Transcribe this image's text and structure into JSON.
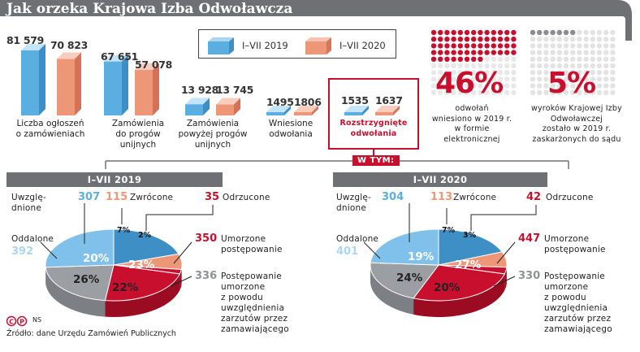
{
  "header": {
    "title": "Jak orzeka Krajowa Izba Odwoławcza"
  },
  "legend": {
    "series_2019": "I–VII 2019",
    "series_2020": "I–VII 2020"
  },
  "colors": {
    "blue": "#5aaee0",
    "salmon": "#ee9678",
    "red": "#c8102e",
    "grey": "#8f9296",
    "dark": "#6f7073",
    "lightblue": "#a9d6f2"
  },
  "bar_labels": [
    {
      "v2019": "81 579",
      "v2020": "70 823"
    },
    {
      "v2019": "67 651",
      "v2020": "57 078"
    },
    {
      "v2019": "13 928",
      "v2020": "13 745"
    },
    {
      "v2019": "1495",
      "v2020": "1806"
    },
    {
      "v2019": "1535",
      "v2020": "1637"
    }
  ],
  "categories": [
    {
      "line1": "Liczba ogłoszeń",
      "line2": "o zamówieniach",
      "line3": ""
    },
    {
      "line1": "Zamówienia",
      "line2": "do progów",
      "line3": "unijnych"
    },
    {
      "line1": "Zamówienia",
      "line2": "powyżej progów",
      "line3": "unijnych"
    },
    {
      "line1": "Wniesione",
      "line2": "odwołania",
      "line3": ""
    },
    {
      "line1": "Rozstrzygnięte",
      "line2": "odwołania",
      "line3": ""
    }
  ],
  "stats": [
    {
      "value": "46%",
      "line1": "odwołań",
      "line2": "wniesiono w 2019 r.",
      "line3": "w formie",
      "line4": "elektronicznej"
    },
    {
      "value": "5%",
      "line1": "wyroków Krajowej Izby",
      "line2": "Odwoławczej",
      "line3": "zostało w 2019 r.",
      "line4": "zaskarżonych do sądu"
    }
  ],
  "w_tym": "W TYM:",
  "pies": [
    {
      "period": "I–VII 2019",
      "items": {
        "uwzgl": {
          "count": "307",
          "label1": "Uwzglę-",
          "label2": "dnione",
          "pct": "20%"
        },
        "zwrocone": {
          "count": "115",
          "label": "Zwrócone",
          "pct": "7%"
        },
        "odrzucone": {
          "count": "35",
          "label": "Odrzucone",
          "pct": "2%"
        },
        "umorzone": {
          "count": "350",
          "label1": "Umorzone",
          "label2": "postępowanie",
          "pct": "23%"
        },
        "umorzone_brak": {
          "count": "336",
          "label1": "Postępowanie",
          "label2": "umorzone",
          "label3": "z powodu",
          "label4": "uwzględnienia",
          "label5": "zarzutów przez",
          "label6": "zamawiającego",
          "pct": "22%"
        },
        "oddalone": {
          "count": "392",
          "label": "Oddalone",
          "pct": "26%"
        }
      }
    },
    {
      "period": "I–VII 2020",
      "items": {
        "uwzgl": {
          "count": "304",
          "label1": "Uwzglę-",
          "label2": "dnione",
          "pct": "19%"
        },
        "zwrocone": {
          "count": "113",
          "label": "Zwrócone",
          "pct": "7%"
        },
        "odrzucone": {
          "count": "42",
          "label": "Odrzucone",
          "pct": "3%"
        },
        "umorzone": {
          "count": "447",
          "label1": "Umorzone",
          "label2": "postępowanie",
          "pct": "27%"
        },
        "umorzone_brak": {
          "count": "330",
          "label1": "Postępowanie",
          "label2": "umorzone",
          "label3": "z powodu",
          "label4": "uwzględnienia",
          "label5": "zarzutów przez",
          "label6": "zamawiającego",
          "pct": "20%"
        },
        "oddalone": {
          "count": "401",
          "label": "Oddalone",
          "pct": "24%"
        }
      }
    }
  ],
  "footer": {
    "copyright": "NS",
    "source": "Źródło: dane Urzędu Zamówień Publicznych"
  },
  "chart_data": [
    {
      "type": "bar",
      "categories": [
        "Liczba ogłoszeń o zamówieniach",
        "Zamówienia do progów unijnych",
        "Zamówienia powyżej progów unijnych",
        "Wniesione odwołania",
        "Rozstrzygnięte odwołania"
      ],
      "series": [
        {
          "name": "I–VII 2019",
          "values": [
            81579,
            67651,
            13928,
            1495,
            1535
          ]
        },
        {
          "name": "I–VII 2020",
          "values": [
            70823,
            57078,
            13745,
            1806,
            1637
          ]
        }
      ]
    },
    {
      "type": "pie",
      "title": "I–VII 2019",
      "labels": [
        "Uwzględnione",
        "Zwrócone",
        "Odrzucone",
        "Umorzone postępowanie",
        "Postępowanie umorzone z powodu uwzględnienia zarzutów przez zamawiającego",
        "Oddalone"
      ],
      "values": [
        20,
        7,
        2,
        23,
        22,
        26
      ],
      "counts": [
        307,
        115,
        35,
        350,
        336,
        392
      ]
    },
    {
      "type": "pie",
      "title": "I–VII 2020",
      "labels": [
        "Uwzględnione",
        "Zwrócone",
        "Odrzucone",
        "Umorzone postępowanie",
        "Postępowanie umorzone z powodu uwzględnienia zarzutów przez zamawiającego",
        "Oddalone"
      ],
      "values": [
        19,
        7,
        3,
        27,
        20,
        24
      ],
      "counts": [
        304,
        113,
        42,
        447,
        330,
        401
      ]
    }
  ]
}
